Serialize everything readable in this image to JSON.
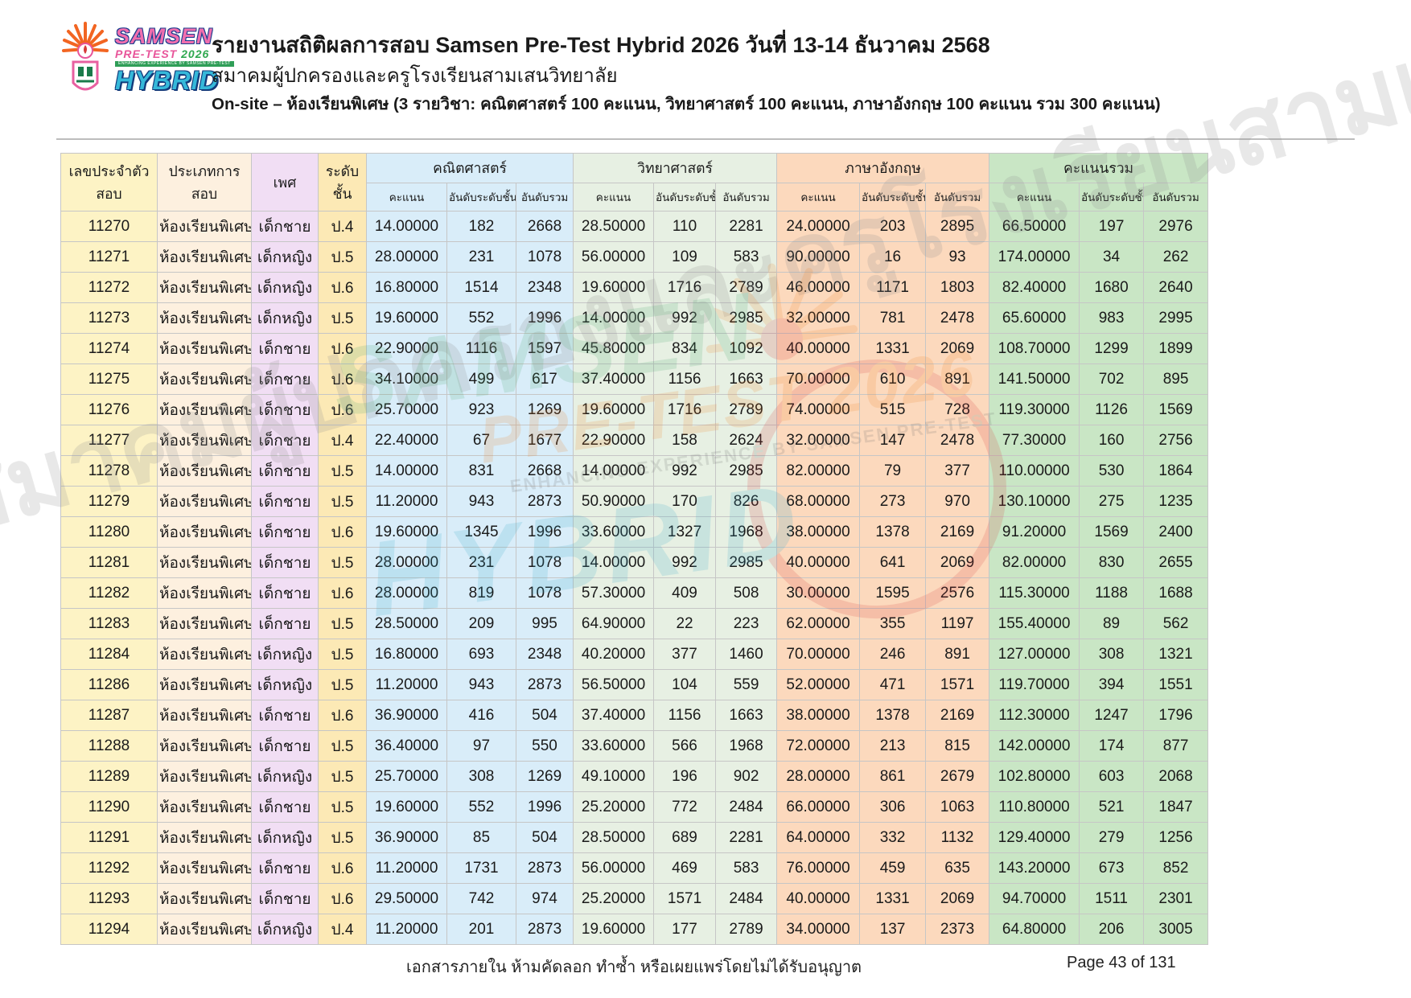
{
  "header": {
    "title": "รายงานสถิติผลการสอบ Samsen Pre-Test Hybrid 2026 วันที่ 13-14 ธันวาคม 2568",
    "subtitle": "สมาคมผู้ปกครองและครูโรงเรียนสามเสนวิทยาลัย",
    "session_info": "On-site – ห้องเรียนพิเศษ (3 รายวิชา: คณิตศาสตร์ 100 คะแนน, วิทยาศาสตร์ 100 คะแนน, ภาษาอังกฤษ 100 คะแนน รวม 300 คะแนน)",
    "logo": {
      "line1": "SAMSEN",
      "pretest_label": "PRE-TEST",
      "pretest_year": "2026",
      "tagline": "ENHANCING EXPERIENCE BY SAMSEN PRE-TEST",
      "line3": "HYBRID"
    }
  },
  "table": {
    "columns": {
      "id": "เลขประจำตัวสอบ",
      "exam_type": "ประเภทการสอบ",
      "gender": "เพศ",
      "grade": "ระดับชั้น",
      "groups": [
        {
          "key": "math",
          "label": "คณิตศาสตร์"
        },
        {
          "key": "sci",
          "label": "วิทยาศาสตร์"
        },
        {
          "key": "eng",
          "label": "ภาษาอังกฤษ"
        },
        {
          "key": "total",
          "label": "คะแนนรวม"
        }
      ],
      "sub": [
        "คะแนน",
        "อันดับระดับชั้น",
        "อันดับรวม"
      ]
    },
    "rows": [
      [
        "11270",
        "ห้องเรียนพิเศษ",
        "เด็กชาย",
        "ป.4",
        "14.00000",
        "182",
        "2668",
        "28.50000",
        "110",
        "2281",
        "24.00000",
        "203",
        "2895",
        "66.50000",
        "197",
        "2976"
      ],
      [
        "11271",
        "ห้องเรียนพิเศษ",
        "เด็กหญิง",
        "ป.5",
        "28.00000",
        "231",
        "1078",
        "56.00000",
        "109",
        "583",
        "90.00000",
        "16",
        "93",
        "174.00000",
        "34",
        "262"
      ],
      [
        "11272",
        "ห้องเรียนพิเศษ",
        "เด็กหญิง",
        "ป.6",
        "16.80000",
        "1514",
        "2348",
        "19.60000",
        "1716",
        "2789",
        "46.00000",
        "1171",
        "1803",
        "82.40000",
        "1680",
        "2640"
      ],
      [
        "11273",
        "ห้องเรียนพิเศษ",
        "เด็กหญิง",
        "ป.5",
        "19.60000",
        "552",
        "1996",
        "14.00000",
        "992",
        "2985",
        "32.00000",
        "781",
        "2478",
        "65.60000",
        "983",
        "2995"
      ],
      [
        "11274",
        "ห้องเรียนพิเศษ",
        "เด็กชาย",
        "ป.6",
        "22.90000",
        "1116",
        "1597",
        "45.80000",
        "834",
        "1092",
        "40.00000",
        "1331",
        "2069",
        "108.70000",
        "1299",
        "1899"
      ],
      [
        "11275",
        "ห้องเรียนพิเศษ",
        "เด็กชาย",
        "ป.6",
        "34.10000",
        "499",
        "617",
        "37.40000",
        "1156",
        "1663",
        "70.00000",
        "610",
        "891",
        "141.50000",
        "702",
        "895"
      ],
      [
        "11276",
        "ห้องเรียนพิเศษ",
        "เด็กชาย",
        "ป.6",
        "25.70000",
        "923",
        "1269",
        "19.60000",
        "1716",
        "2789",
        "74.00000",
        "515",
        "728",
        "119.30000",
        "1126",
        "1569"
      ],
      [
        "11277",
        "ห้องเรียนพิเศษ",
        "เด็กชาย",
        "ป.4",
        "22.40000",
        "67",
        "1677",
        "22.90000",
        "158",
        "2624",
        "32.00000",
        "147",
        "2478",
        "77.30000",
        "160",
        "2756"
      ],
      [
        "11278",
        "ห้องเรียนพิเศษ",
        "เด็กชาย",
        "ป.5",
        "14.00000",
        "831",
        "2668",
        "14.00000",
        "992",
        "2985",
        "82.00000",
        "79",
        "377",
        "110.00000",
        "530",
        "1864"
      ],
      [
        "11279",
        "ห้องเรียนพิเศษ",
        "เด็กชาย",
        "ป.5",
        "11.20000",
        "943",
        "2873",
        "50.90000",
        "170",
        "826",
        "68.00000",
        "273",
        "970",
        "130.10000",
        "275",
        "1235"
      ],
      [
        "11280",
        "ห้องเรียนพิเศษ",
        "เด็กชาย",
        "ป.6",
        "19.60000",
        "1345",
        "1996",
        "33.60000",
        "1327",
        "1968",
        "38.00000",
        "1378",
        "2169",
        "91.20000",
        "1569",
        "2400"
      ],
      [
        "11281",
        "ห้องเรียนพิเศษ",
        "เด็กชาย",
        "ป.5",
        "28.00000",
        "231",
        "1078",
        "14.00000",
        "992",
        "2985",
        "40.00000",
        "641",
        "2069",
        "82.00000",
        "830",
        "2655"
      ],
      [
        "11282",
        "ห้องเรียนพิเศษ",
        "เด็กชาย",
        "ป.6",
        "28.00000",
        "819",
        "1078",
        "57.30000",
        "409",
        "508",
        "30.00000",
        "1595",
        "2576",
        "115.30000",
        "1188",
        "1688"
      ],
      [
        "11283",
        "ห้องเรียนพิเศษ",
        "เด็กชาย",
        "ป.5",
        "28.50000",
        "209",
        "995",
        "64.90000",
        "22",
        "223",
        "62.00000",
        "355",
        "1197",
        "155.40000",
        "89",
        "562"
      ],
      [
        "11284",
        "ห้องเรียนพิเศษ",
        "เด็กหญิง",
        "ป.5",
        "16.80000",
        "693",
        "2348",
        "40.20000",
        "377",
        "1460",
        "70.00000",
        "246",
        "891",
        "127.00000",
        "308",
        "1321"
      ],
      [
        "11286",
        "ห้องเรียนพิเศษ",
        "เด็กหญิง",
        "ป.5",
        "11.20000",
        "943",
        "2873",
        "56.50000",
        "104",
        "559",
        "52.00000",
        "471",
        "1571",
        "119.70000",
        "394",
        "1551"
      ],
      [
        "11287",
        "ห้องเรียนพิเศษ",
        "เด็กชาย",
        "ป.6",
        "36.90000",
        "416",
        "504",
        "37.40000",
        "1156",
        "1663",
        "38.00000",
        "1378",
        "2169",
        "112.30000",
        "1247",
        "1796"
      ],
      [
        "11288",
        "ห้องเรียนพิเศษ",
        "เด็กชาย",
        "ป.5",
        "36.40000",
        "97",
        "550",
        "33.60000",
        "566",
        "1968",
        "72.00000",
        "213",
        "815",
        "142.00000",
        "174",
        "877"
      ],
      [
        "11289",
        "ห้องเรียนพิเศษ",
        "เด็กหญิง",
        "ป.5",
        "25.70000",
        "308",
        "1269",
        "49.10000",
        "196",
        "902",
        "28.00000",
        "861",
        "2679",
        "102.80000",
        "603",
        "2068"
      ],
      [
        "11290",
        "ห้องเรียนพิเศษ",
        "เด็กชาย",
        "ป.5",
        "19.60000",
        "552",
        "1996",
        "25.20000",
        "772",
        "2484",
        "66.00000",
        "306",
        "1063",
        "110.80000",
        "521",
        "1847"
      ],
      [
        "11291",
        "ห้องเรียนพิเศษ",
        "เด็กหญิง",
        "ป.5",
        "36.90000",
        "85",
        "504",
        "28.50000",
        "689",
        "2281",
        "64.00000",
        "332",
        "1132",
        "129.40000",
        "279",
        "1256"
      ],
      [
        "11292",
        "ห้องเรียนพิเศษ",
        "เด็กชาย",
        "ป.6",
        "11.20000",
        "1731",
        "2873",
        "56.00000",
        "469",
        "583",
        "76.00000",
        "459",
        "635",
        "143.20000",
        "673",
        "852"
      ],
      [
        "11293",
        "ห้องเรียนพิเศษ",
        "เด็กชาย",
        "ป.6",
        "29.50000",
        "742",
        "974",
        "25.20000",
        "1571",
        "2484",
        "40.00000",
        "1331",
        "2069",
        "94.70000",
        "1511",
        "2301"
      ],
      [
        "11294",
        "ห้องเรียนพิเศษ",
        "เด็กหญิง",
        "ป.4",
        "11.20000",
        "201",
        "2873",
        "19.60000",
        "177",
        "2789",
        "34.00000",
        "137",
        "2373",
        "64.80000",
        "206",
        "3005"
      ]
    ]
  },
  "footer": {
    "note": "เอกสารภายใน ห้ามคัดลอก ทำซ้ำ หรือเผยแพร่โดยไม่ได้รับอนุญาต",
    "page": "Page 43 of 131"
  },
  "watermark": {
    "band_text": "สมาคมผู้ปกครองและครูโรงเรียนสามเสนวิทยาลัย",
    "logo_line1": "SAMSEN",
    "logo_line2": "PRE-TEST 2026",
    "logo_tagline": "ENHANCING EXPERIENCE BY SAMSEN PRE-TEST",
    "logo_line3": "HYBRID"
  },
  "colors": {
    "id_column": "#fdf3c5",
    "exam_type_column": "#fdf0df",
    "gender_column": "#f1def4",
    "grade_column": "#fce9b5",
    "math_columns": "#d9edf9",
    "science_columns": "#e7f0e3",
    "english_columns": "#fcd9bd",
    "total_columns": "#c9e6c5",
    "logo_pink": "#f06eae",
    "logo_green": "#2fa84f",
    "logo_blue": "#35b8d9",
    "logo_orange": "#f26522"
  }
}
